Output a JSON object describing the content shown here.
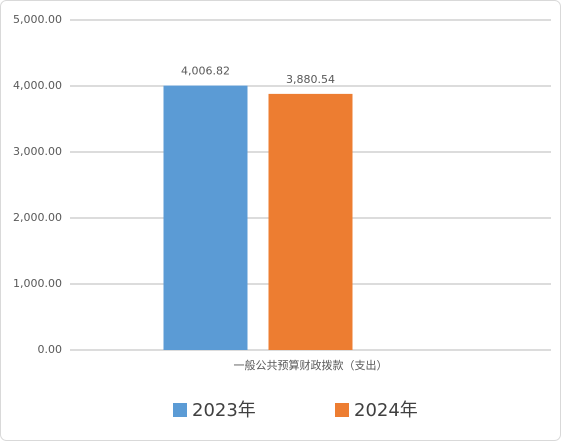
{
  "chart_data": {
    "type": "bar",
    "categories": [
      "一般公共预算财政拨款（支出）"
    ],
    "series": [
      {
        "name": "2023年",
        "color": "#5b9bd5",
        "values": [
          4006.82
        ],
        "value_labels": [
          "4,006.82"
        ]
      },
      {
        "name": "2024年",
        "color": "#ed7d31",
        "values": [
          3880.54
        ],
        "value_labels": [
          "3,880.54"
        ]
      }
    ],
    "ylim": [
      0,
      5000
    ],
    "yticks": [
      {
        "value": 0,
        "label": "0.00"
      },
      {
        "value": 1000,
        "label": "1,000.00"
      },
      {
        "value": 2000,
        "label": "2,000.00"
      },
      {
        "value": 3000,
        "label": "3,000.00"
      },
      {
        "value": 4000,
        "label": "4,000.00"
      },
      {
        "value": 5000,
        "label": "5,000.00"
      }
    ],
    "grid": true,
    "legend": "bottom"
  }
}
